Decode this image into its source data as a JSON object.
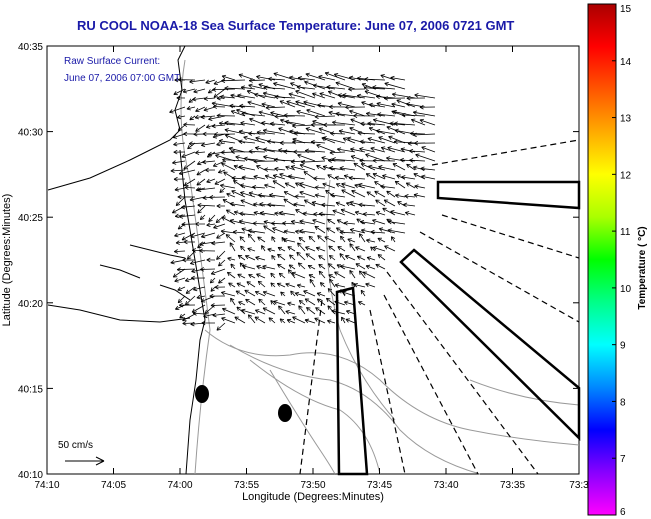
{
  "title": "RU COOL  NOAA-18  Sea Surface Temperature:  June 07, 2006 0721 GMT",
  "inset": {
    "line1": "Raw Surface Current:",
    "line2": "June 07, 2006 07:00 GMT"
  },
  "scale_label": "50 cm/s",
  "xlabel": "Longitude (Degrees:Minutes)",
  "ylabel": "Latitude (Degrees:Minutes)",
  "xticks": [
    "74:10",
    "74:05",
    "74:00",
    "73:55",
    "73:50",
    "73:45",
    "73:40",
    "73:35",
    "73:3"
  ],
  "yticks": [
    "40:35",
    "40:30",
    "40:25",
    "40:20",
    "40:15",
    "40:10"
  ],
  "colorbar": {
    "label": "Temperature ( °C)",
    "ticks": [
      "15",
      "14",
      "13",
      "12",
      "11",
      "10",
      "9",
      "8",
      "7",
      "6"
    ],
    "min": 6,
    "max": 15,
    "colors": [
      "#ff00ff",
      "#8800ff",
      "#0000ff",
      "#0088ff",
      "#00ffff",
      "#00ff88",
      "#00ff00",
      "#aaff00",
      "#ffff00",
      "#ffaa00",
      "#ff5500",
      "#ff0000",
      "#aa0000"
    ]
  }
}
